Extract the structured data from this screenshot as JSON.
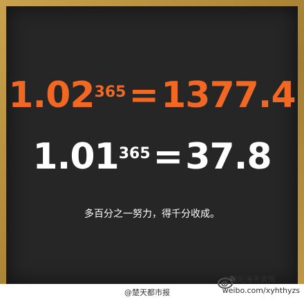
{
  "equation_strong": {
    "base": "1.02",
    "exponent": "365",
    "equals": "=",
    "result": "1377.4"
  },
  "equation_weak": {
    "base": "1.01",
    "exponent": "365",
    "equals": "=",
    "result": "37.8"
  },
  "caption": "多百分之一努力，得千分收成。",
  "watermark_left": "@楚天都市报",
  "watermark_right_handle": "@襄阳海天装饰",
  "watermark_right_url": "weibo.com/xyhthyzs",
  "colors": {
    "accent": "#f26722",
    "board": "#262626",
    "frame": "#b08a3a"
  },
  "icons": [
    "weibo-icon"
  ]
}
